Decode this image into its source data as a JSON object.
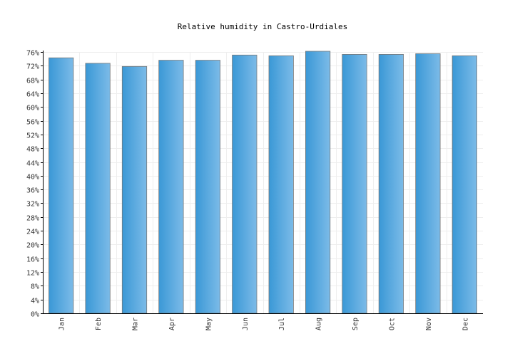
{
  "chart_data": {
    "type": "bar",
    "title": "Relative humidity in Castro-Urdiales",
    "xlabel": "",
    "ylabel": "",
    "categories": [
      "Jan",
      "Feb",
      "Mar",
      "Apr",
      "May",
      "Jun",
      "Jul",
      "Aug",
      "Sep",
      "Oct",
      "Nov",
      "Dec"
    ],
    "values": [
      74.3,
      72.7,
      71.8,
      73.6,
      73.6,
      75.1,
      74.9,
      76.2,
      75.3,
      75.3,
      75.5,
      74.9
    ],
    "ylim": [
      0,
      76
    ],
    "yticks": [
      "0%",
      "4%",
      "8%",
      "12%",
      "16%",
      "20%",
      "24%",
      "28%",
      "32%",
      "36%",
      "40%",
      "44%",
      "48%",
      "52%",
      "56%",
      "60%",
      "64%",
      "68%",
      "72%",
      "76%"
    ],
    "grid": true,
    "bar_color": "#4aa3df",
    "bar_color_light": "#7cbbe8"
  }
}
